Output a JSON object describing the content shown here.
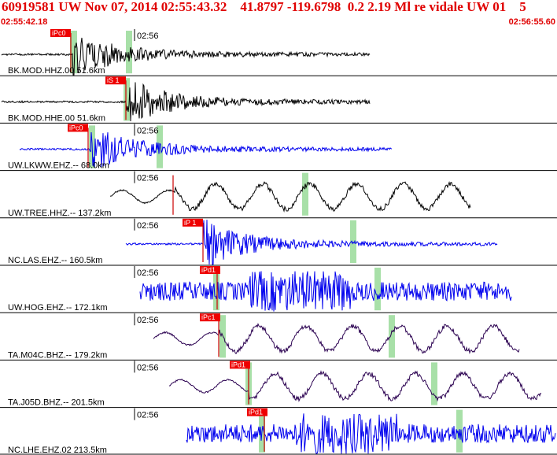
{
  "header": {
    "title": "60919581 UW Nov 07, 2014 02:55:43.32    41.8797 -119.6798  0.2 2.19 Ml re vidale UW 01    5",
    "start_time": "02:55:42.18",
    "end_time": "02:56:55.60"
  },
  "colors": {
    "header_text": "#e00000",
    "pick_flag": "#ee0000",
    "pick_window": "#a8e0a8",
    "black_trace": "#000000",
    "blue_trace": "#0000ee",
    "purple_trace": "#2a0050",
    "divider": "#000000"
  },
  "traces": [
    {
      "label": "BK.MOD.HHZ.00 51.6km",
      "time_label": "02:56",
      "pick": "iPc0",
      "color": "black",
      "style": "burst"
    },
    {
      "label": "BK.MOD.HHE.00 51.6km",
      "time_label": "",
      "pick": "iS 1",
      "color": "black",
      "style": "burst"
    },
    {
      "label": "UW.LKWW.EHZ.-- 68.0km",
      "time_label": "02:56",
      "pick": "iPc0",
      "color": "blue",
      "style": "burst"
    },
    {
      "label": "UW.TREE.HHZ.-- 137.2km",
      "time_label": "02:56",
      "pick": "",
      "color": "black",
      "style": "wave"
    },
    {
      "label": "NC.LAS.EHZ.-- 160.5km",
      "time_label": "02:56",
      "pick": "iP 1",
      "color": "blue",
      "style": "burst"
    },
    {
      "label": "UW.HOG.EHZ.-- 172.1km",
      "time_label": "02:56",
      "pick": "iPd1",
      "color": "blue",
      "style": "noise"
    },
    {
      "label": "TA.M04C.BHZ.-- 179.2km",
      "time_label": "02:56",
      "pick": "iPc1",
      "color": "purple",
      "style": "wave"
    },
    {
      "label": "TA.J05D.BHZ.-- 201.5km",
      "time_label": "02:56",
      "pick": "iPd1",
      "color": "purple",
      "style": "wave"
    },
    {
      "label": "NC.LHE.EHZ.02 213.5km",
      "time_label": "02:56",
      "pick": "iPd1",
      "color": "blue",
      "style": "noise"
    }
  ]
}
